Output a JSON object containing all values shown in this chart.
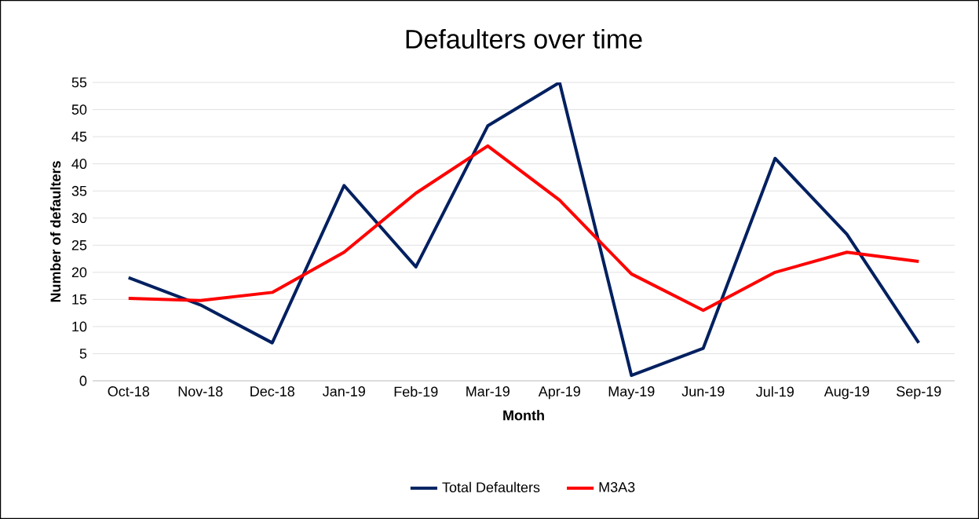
{
  "chart_data": {
    "type": "line",
    "title": "Defaulters over time",
    "xlabel": "Month",
    "ylabel": "Number of defaulters",
    "categories": [
      "Oct-18",
      "Nov-18",
      "Dec-18",
      "Jan-19",
      "Feb-19",
      "Mar-19",
      "Apr-19",
      "May-19",
      "Jun-19",
      "Jul-19",
      "Aug-19",
      "Sep-19"
    ],
    "series": [
      {
        "name": "Total Defaulters",
        "color": "#002060",
        "values": [
          19,
          14,
          7,
          36,
          21,
          47,
          55,
          1,
          6,
          41,
          27,
          7
        ]
      },
      {
        "name": "M3A3",
        "color": "#ff0000",
        "values": [
          15.2,
          14.8,
          16.3,
          23.7,
          34.6,
          43.3,
          33.3,
          19.7,
          13.0,
          20.0,
          23.7,
          22.0
        ]
      }
    ],
    "ylim": [
      0,
      55
    ],
    "yticks": [
      0,
      5,
      10,
      15,
      20,
      25,
      30,
      35,
      40,
      45,
      50,
      55
    ],
    "grid": "y",
    "legend": "bottom"
  }
}
